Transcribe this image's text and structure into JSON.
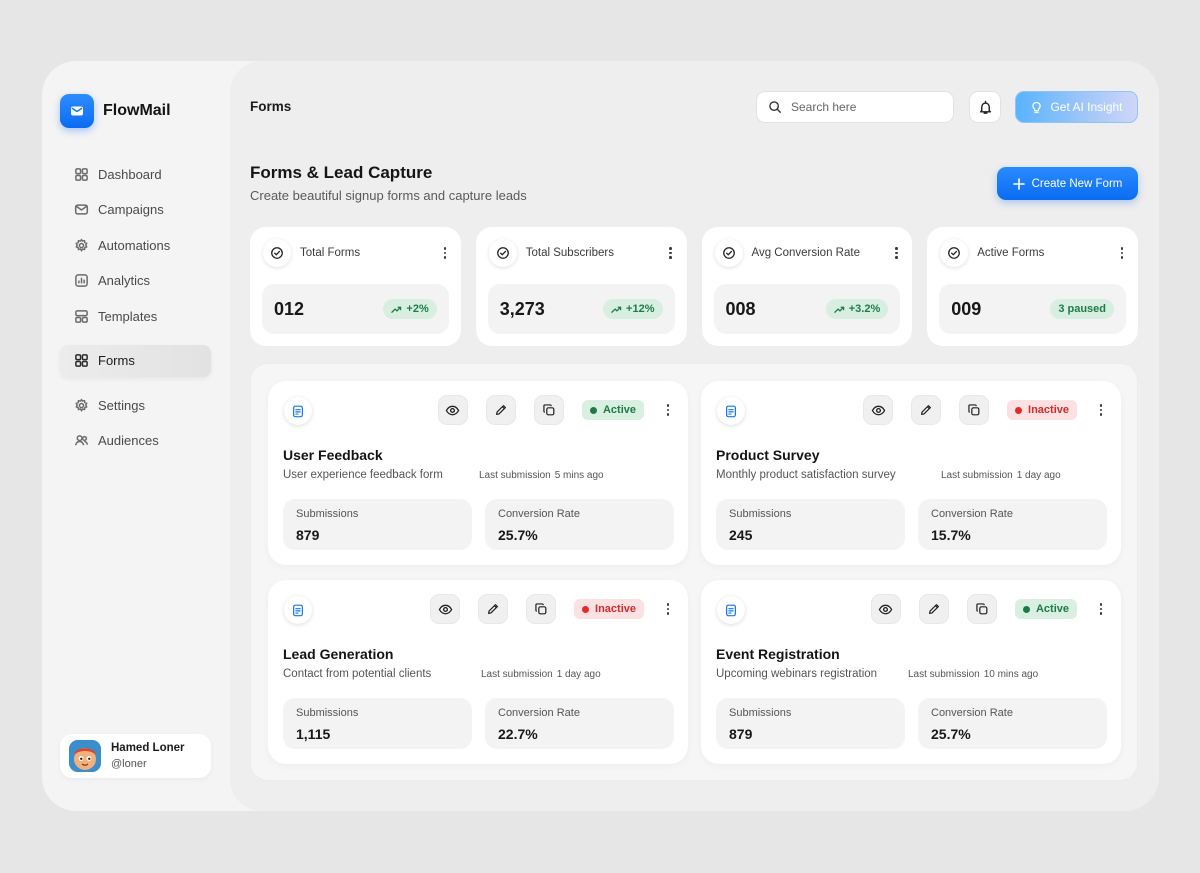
{
  "app": {
    "name": "FlowMail"
  },
  "sidebar": {
    "items": [
      {
        "label": "Dashboard",
        "icon": "grid-icon"
      },
      {
        "label": "Campaigns",
        "icon": "mail-icon"
      },
      {
        "label": "Automations",
        "icon": "gear-icon"
      },
      {
        "label": "Analytics",
        "icon": "chart-icon"
      },
      {
        "label": "Templates",
        "icon": "layout-icon"
      },
      {
        "label": "Forms",
        "icon": "grid-icon",
        "active": true
      },
      {
        "label": "Settings",
        "icon": "gear-icon"
      },
      {
        "label": "Audiences",
        "icon": "users-icon"
      }
    ]
  },
  "user": {
    "name": "Hamed Loner",
    "handle": "@loner"
  },
  "header": {
    "breadcrumb": "Forms",
    "search_placeholder": "Search here",
    "ai_label": "Get AI Insight"
  },
  "page": {
    "title": "Forms & Lead Capture",
    "subtitle": "Create beautiful signup forms and capture leads",
    "create_label": "Create New Form"
  },
  "stats": [
    {
      "label": "Total Forms",
      "value": "012",
      "badge": "+2%"
    },
    {
      "label": "Total Subscribers",
      "value": "3,273",
      "badge": "+12%"
    },
    {
      "label": "Avg Conversion Rate",
      "value": "008",
      "badge": "+3.2%"
    },
    {
      "label": "Active Forms",
      "value": "009",
      "badge": "3 paused"
    }
  ],
  "forms_meta": {
    "last_label": "Last submission",
    "submissions_label": "Submissions",
    "conversion_label": "Conversion Rate"
  },
  "forms": [
    {
      "title": "User Feedback",
      "desc": "User experience feedback form",
      "last": "5 mins ago",
      "status": "Active",
      "submissions": "879",
      "conversion": "25.7%"
    },
    {
      "title": "Product Survey",
      "desc": "Monthly product satisfaction survey",
      "last": "1 day ago",
      "status": "Inactive",
      "submissions": "245",
      "conversion": "15.7%"
    },
    {
      "title": "Lead Generation",
      "desc": "Contact from potential clients",
      "last": "1 day ago",
      "status": "Inactive",
      "submissions": "1,115",
      "conversion": "22.7%"
    },
    {
      "title": "Event Registration",
      "desc": "Upcoming webinars registration",
      "last": "10 mins ago",
      "status": "Active",
      "submissions": "879",
      "conversion": "25.7%"
    }
  ],
  "colors": {
    "accent": "#0a6cf2",
    "active": "#1c7b46",
    "inactive": "#d22b2b"
  }
}
